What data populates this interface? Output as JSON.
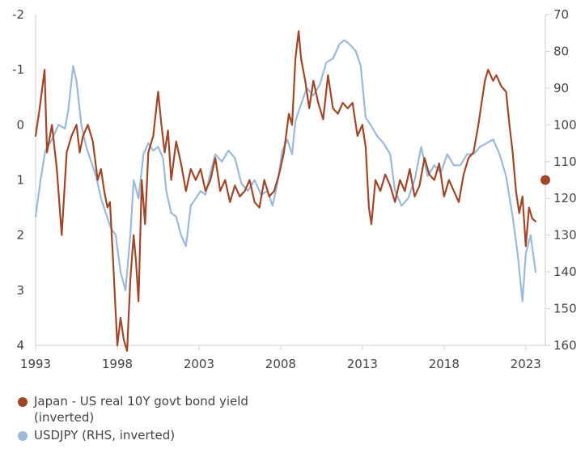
{
  "chart_data": {
    "type": "line",
    "title": "",
    "xlabel": "",
    "ylabel": "",
    "x_ticks": [
      "1993",
      "1998",
      "2003",
      "2008",
      "2013",
      "2018",
      "2023"
    ],
    "xlim": [
      1993,
      2024.2
    ],
    "y_left": {
      "range": [
        -2,
        4
      ],
      "inverted": true,
      "ticks": [
        "-2",
        "-1",
        "0",
        "1",
        "2",
        "3",
        "4"
      ]
    },
    "y_right": {
      "range": [
        70,
        160
      ],
      "inverted": true,
      "ticks": [
        "70",
        "80",
        "90",
        "100",
        "110",
        "120",
        "130",
        "140",
        "150",
        "160"
      ]
    },
    "grid": false,
    "legend_position": "bottom-left",
    "series": [
      {
        "name": "Japan - US real 10Y govt bond yield (inverted)",
        "axis": "left",
        "color": "#A0472A",
        "x": [
          1993.0,
          1993.25,
          1993.55,
          1993.7,
          1994.0,
          1994.3,
          1994.6,
          1994.9,
          1995.2,
          1995.5,
          1995.7,
          1995.9,
          1996.2,
          1996.5,
          1996.8,
          1997.0,
          1997.2,
          1997.4,
          1997.55,
          1997.75,
          1998.0,
          1998.2,
          1998.4,
          1998.6,
          1998.8,
          1999.0,
          1999.15,
          1999.3,
          1999.5,
          1999.7,
          1999.9,
          2000.2,
          2000.5,
          2000.7,
          2000.9,
          2001.1,
          2001.3,
          2001.6,
          2001.9,
          2002.2,
          2002.5,
          2002.8,
          2003.1,
          2003.4,
          2003.7,
          2004.0,
          2004.3,
          2004.6,
          2004.9,
          2005.2,
          2005.5,
          2005.8,
          2006.1,
          2006.4,
          2006.7,
          2007.0,
          2007.3,
          2007.6,
          2007.9,
          2008.2,
          2008.5,
          2008.7,
          2008.9,
          2009.1,
          2009.25,
          2009.5,
          2009.75,
          2010.0,
          2010.3,
          2010.6,
          2010.9,
          2011.2,
          2011.5,
          2011.8,
          2012.1,
          2012.4,
          2012.7,
          2013.0,
          2013.2,
          2013.4,
          2013.55,
          2013.8,
          2014.1,
          2014.4,
          2014.7,
          2015.0,
          2015.3,
          2015.6,
          2015.9,
          2016.2,
          2016.5,
          2016.8,
          2017.1,
          2017.4,
          2017.7,
          2018.0,
          2018.3,
          2018.6,
          2018.9,
          2019.2,
          2019.5,
          2019.8,
          2020.1,
          2020.3,
          2020.5,
          2020.7,
          2021.0,
          2021.2,
          2021.5,
          2021.8,
          2022.0,
          2022.2,
          2022.4,
          2022.6,
          2022.8,
          2023.0,
          2023.2,
          2023.4,
          2023.6
        ],
        "values": [
          0.2,
          -0.3,
          -1.0,
          0.5,
          0.0,
          0.8,
          2.0,
          0.5,
          0.2,
          0.0,
          0.5,
          0.2,
          0.0,
          0.3,
          1.0,
          0.8,
          1.2,
          1.5,
          1.4,
          2.5,
          4.0,
          3.5,
          3.9,
          4.1,
          2.8,
          2.0,
          2.5,
          3.2,
          1.0,
          1.8,
          0.5,
          0.2,
          -0.6,
          0.0,
          0.5,
          0.1,
          1.0,
          0.3,
          0.7,
          1.2,
          0.8,
          1.0,
          0.8,
          1.2,
          1.0,
          0.6,
          1.2,
          1.0,
          1.4,
          1.1,
          1.3,
          1.2,
          1.0,
          1.4,
          1.5,
          1.0,
          1.3,
          1.2,
          0.9,
          0.5,
          -0.2,
          0.0,
          -1.2,
          -1.7,
          -1.2,
          -0.8,
          -0.3,
          -0.8,
          -0.4,
          -0.1,
          -0.9,
          -0.3,
          -0.2,
          -0.4,
          -0.3,
          -0.4,
          0.2,
          0.0,
          0.4,
          1.5,
          1.8,
          1.0,
          1.2,
          0.9,
          1.1,
          1.4,
          1.0,
          1.2,
          0.8,
          1.3,
          1.1,
          0.6,
          0.9,
          1.0,
          0.7,
          1.3,
          1.0,
          1.2,
          1.4,
          0.9,
          0.6,
          0.5,
          0.0,
          -0.4,
          -0.8,
          -1.0,
          -0.8,
          -0.9,
          -0.7,
          -0.6,
          0.0,
          0.5,
          1.2,
          1.6,
          1.3,
          2.2,
          1.5,
          1.7,
          1.75
        ]
      },
      {
        "name": "USDJPY (RHS, inverted)",
        "axis": "right",
        "color": "#9DB9DA",
        "x": [
          1993.0,
          1993.3,
          1993.6,
          1994.0,
          1994.4,
          1994.8,
          1995.0,
          1995.3,
          1995.5,
          1995.8,
          1996.1,
          1996.4,
          1996.7,
          1997.0,
          1997.3,
          1997.6,
          1997.9,
          1998.2,
          1998.5,
          1998.8,
          1999.0,
          1999.3,
          1999.6,
          1999.9,
          2000.2,
          2000.5,
          2000.8,
          2001.0,
          2001.3,
          2001.6,
          2001.9,
          2002.2,
          2002.5,
          2002.8,
          2003.1,
          2003.4,
          2003.7,
          2004.0,
          2004.4,
          2004.8,
          2005.2,
          2005.6,
          2006.0,
          2006.4,
          2006.8,
          2007.2,
          2007.5,
          2007.8,
          2008.1,
          2008.4,
          2008.7,
          2008.9,
          2009.2,
          2009.6,
          2010.0,
          2010.4,
          2010.8,
          2011.2,
          2011.6,
          2011.9,
          2012.2,
          2012.6,
          2012.9,
          2013.2,
          2013.5,
          2013.9,
          2014.3,
          2014.7,
          2015.0,
          2015.4,
          2015.8,
          2016.2,
          2016.6,
          2017.0,
          2017.4,
          2017.8,
          2018.2,
          2018.6,
          2019.0,
          2019.4,
          2019.8,
          2020.2,
          2020.6,
          2021.0,
          2021.4,
          2021.8,
          2022.2,
          2022.5,
          2022.8,
          2023.0,
          2023.3,
          2023.6
        ],
        "values": [
          125,
          115,
          107,
          104,
          100,
          101,
          96,
          84,
          88,
          100,
          106,
          110,
          114,
          120,
          124,
          128,
          130,
          140,
          145,
          130,
          115,
          120,
          108,
          105,
          107,
          106,
          109,
          118,
          124,
          125,
          130,
          133,
          122,
          120,
          118,
          119,
          113,
          108,
          110,
          107,
          109,
          116,
          118,
          115,
          119,
          118,
          122,
          116,
          107,
          104,
          108,
          99,
          95,
          90,
          92,
          89,
          83,
          82,
          78,
          77,
          78,
          80,
          84,
          98,
          100,
          103,
          105,
          108,
          118,
          122,
          120,
          115,
          106,
          114,
          111,
          113,
          108,
          111,
          111,
          108,
          108,
          106,
          105,
          104,
          108,
          114,
          125,
          135,
          148,
          135,
          130,
          140
        ]
      }
    ],
    "marker": {
      "series_axis": "right",
      "x": 2024.2,
      "y": 115,
      "color": "#A0472A"
    }
  },
  "legend": [
    {
      "label": "Japan - US real 10Y govt bond yield (inverted)",
      "color": "#A0472A"
    },
    {
      "label": "USDJPY (RHS, inverted)",
      "color": "#9DB9DA"
    }
  ]
}
